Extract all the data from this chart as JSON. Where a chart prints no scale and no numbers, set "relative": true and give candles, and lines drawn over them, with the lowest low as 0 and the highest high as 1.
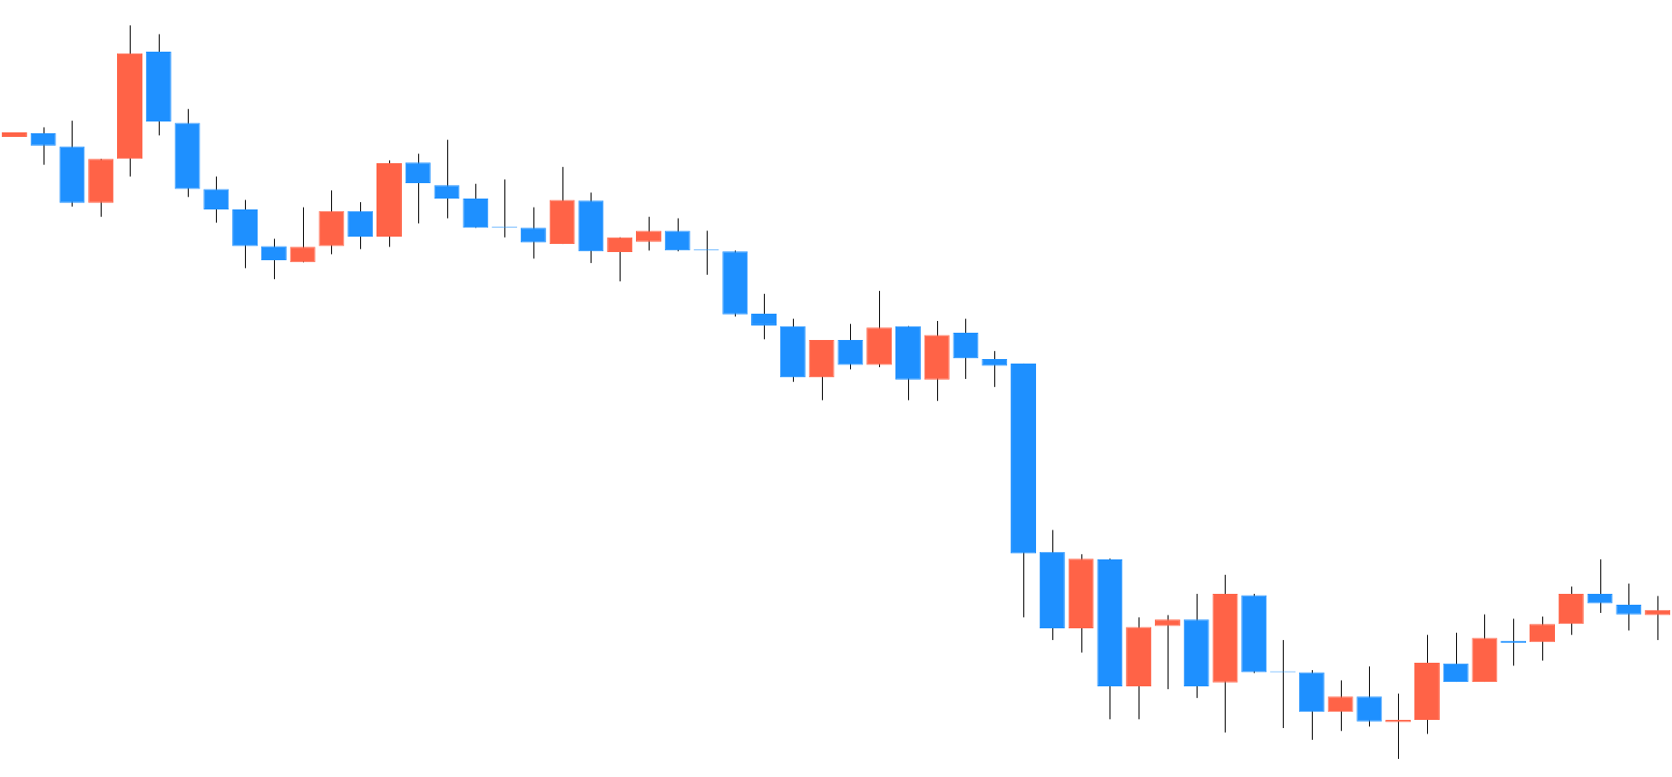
{
  "chart_data": {
    "type": "candlestick",
    "relative": true,
    "categories": [
      null,
      null,
      null,
      null,
      null,
      null,
      null,
      null,
      null,
      null,
      null,
      null,
      null,
      null,
      null,
      null,
      null,
      null,
      null,
      null,
      null,
      null,
      null,
      null,
      null,
      null,
      null,
      null,
      null,
      null,
      null,
      null,
      null,
      null,
      null,
      null,
      null,
      null,
      null,
      null,
      null,
      null,
      null,
      null,
      null,
      null,
      null,
      null,
      null,
      null,
      null,
      null,
      null,
      null,
      null,
      null,
      null,
      null
    ],
    "ohlc": [
      [
        0.848,
        0.854,
        0.848,
        0.854
      ],
      [
        0.853,
        0.861,
        0.81,
        0.836
      ],
      [
        0.835,
        0.87,
        0.753,
        0.758
      ],
      [
        0.758,
        0.818,
        0.739,
        0.818
      ],
      [
        0.818,
        1,
        0.794,
        0.962
      ],
      [
        0.964,
        0.988,
        0.85,
        0.869
      ],
      [
        0.867,
        0.886,
        0.766,
        0.777
      ],
      [
        0.777,
        0.794,
        0.731,
        0.749
      ],
      [
        0.749,
        0.762,
        0.669,
        0.699
      ],
      [
        0.699,
        0.709,
        0.654,
        0.68
      ],
      [
        0.677,
        0.752,
        0.677,
        0.698
      ],
      [
        0.699,
        0.775,
        0.688,
        0.747
      ],
      [
        0.747,
        0.759,
        0.695,
        0.712
      ],
      [
        0.712,
        0.816,
        0.698,
        0.812
      ],
      [
        0.813,
        0.825,
        0.73,
        0.785
      ],
      [
        0.782,
        0.844,
        0.737,
        0.764
      ],
      [
        0.764,
        0.784,
        0.724,
        0.724
      ],
      [
        0.724,
        0.79,
        0.711,
        0.724
      ],
      [
        0.724,
        0.752,
        0.682,
        0.704
      ],
      [
        0.702,
        0.807,
        0.702,
        0.762
      ],
      [
        0.761,
        0.772,
        0.676,
        0.692
      ],
      [
        0.691,
        0.711,
        0.651,
        0.711
      ],
      [
        0.705,
        0.739,
        0.693,
        0.72
      ],
      [
        0.72,
        0.737,
        0.692,
        0.693
      ],
      [
        0.693,
        0.72,
        0.66,
        0.693
      ],
      [
        0.692,
        0.693,
        0.603,
        0.606
      ],
      [
        0.607,
        0.634,
        0.572,
        0.591
      ],
      [
        0.59,
        0.6,
        0.514,
        0.52
      ],
      [
        0.52,
        0.571,
        0.489,
        0.571
      ],
      [
        0.571,
        0.593,
        0.531,
        0.537
      ],
      [
        0.537,
        0.638,
        0.534,
        0.588
      ],
      [
        0.59,
        0.59,
        0.489,
        0.517
      ],
      [
        0.517,
        0.597,
        0.488,
        0.578
      ],
      [
        0.581,
        0.6,
        0.518,
        0.546
      ],
      [
        0.545,
        0.556,
        0.507,
        0.536
      ],
      [
        0.539,
        0.539,
        0.193,
        0.28
      ],
      [
        0.282,
        0.312,
        0.162,
        0.178
      ],
      [
        0.178,
        0.279,
        0.145,
        0.273
      ],
      [
        0.272,
        0.273,
        0.054,
        0.099
      ],
      [
        0.099,
        0.193,
        0.054,
        0.18
      ],
      [
        0.181,
        0.196,
        0.095,
        0.19
      ],
      [
        0.19,
        0.225,
        0.083,
        0.099
      ],
      [
        0.104,
        0.251,
        0.036,
        0.225
      ],
      [
        0.223,
        0.225,
        0.117,
        0.118
      ],
      [
        0.118,
        0.162,
        0.042,
        0.118
      ],
      [
        0.118,
        0.121,
        0.026,
        0.064
      ],
      [
        0.064,
        0.107,
        0.038,
        0.085
      ],
      [
        0.085,
        0.126,
        0.044,
        0.051
      ],
      [
        0.05,
        0.089,
        0,
        0.053
      ],
      [
        0.053,
        0.169,
        0.034,
        0.131
      ],
      [
        0.13,
        0.172,
        0.105,
        0.105
      ],
      [
        0.105,
        0.197,
        0.105,
        0.165
      ],
      [
        0.161,
        0.191,
        0.127,
        0.158
      ],
      [
        0.159,
        0.194,
        0.134,
        0.184
      ],
      [
        0.184,
        0.235,
        0.169,
        0.225
      ],
      [
        0.225,
        0.272,
        0.199,
        0.212
      ],
      [
        0.21,
        0.239,
        0.175,
        0.197
      ],
      [
        0.196,
        0.222,
        0.162,
        0.203
      ]
    ],
    "colors": [
      "#ff6347",
      "#1e90ff",
      "#1e90ff",
      "#ff6347",
      "#ff6347",
      "#1e90ff",
      "#1e90ff",
      "#1e90ff",
      "#1e90ff",
      "#1e90ff",
      "#ff6347",
      "#ff6347",
      "#1e90ff",
      "#ff6347",
      "#1e90ff",
      "#1e90ff",
      "#1e90ff",
      "#1e90ff",
      "#1e90ff",
      "#ff6347",
      "#1e90ff",
      "#ff6347",
      "#ff6347",
      "#1e90ff",
      "#1e90ff",
      "#1e90ff",
      "#1e90ff",
      "#1e90ff",
      "#ff6347",
      "#1e90ff",
      "#ff6347",
      "#1e90ff",
      "#ff6347",
      "#1e90ff",
      "#1e90ff",
      "#1e90ff",
      "#1e90ff",
      "#ff6347",
      "#1e90ff",
      "#ff6347",
      "#ff6347",
      "#1e90ff",
      "#ff6347",
      "#1e90ff",
      "#1e90ff",
      "#1e90ff",
      "#ff6347",
      "#1e90ff",
      "#ff6347",
      "#ff6347",
      "#1e90ff",
      "#ff6347",
      "#1e90ff",
      "#ff6347",
      "#ff6347",
      "#1e90ff",
      "#1e90ff",
      "#ff6347"
    ]
  }
}
